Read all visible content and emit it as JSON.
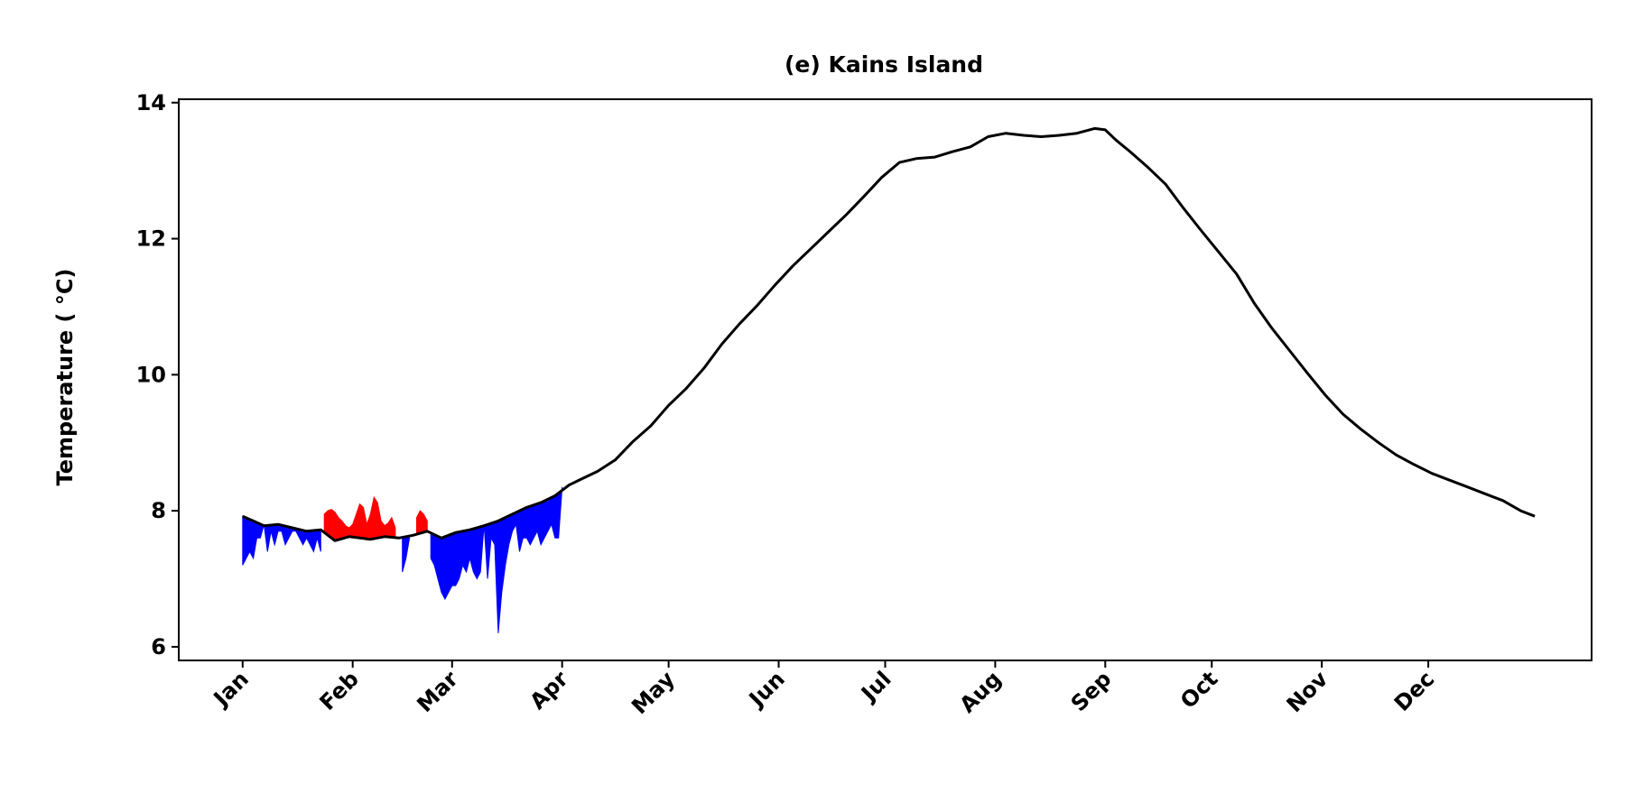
{
  "chart_data": {
    "type": "line",
    "title": "(e) Kains Island",
    "ylabel": "Temperature ( °C)",
    "xlabel": "",
    "x_unit": "day of year",
    "xlim": [
      -18,
      380
    ],
    "ylim": [
      5.8,
      14.05
    ],
    "yticks": [
      6,
      8,
      10,
      12,
      14
    ],
    "xticks": [
      {
        "label": "Jan",
        "day": 0
      },
      {
        "label": "Feb",
        "day": 31
      },
      {
        "label": "Mar",
        "day": 59
      },
      {
        "label": "Apr",
        "day": 90
      },
      {
        "label": "May",
        "day": 120
      },
      {
        "label": "Jun",
        "day": 151
      },
      {
        "label": "Jul",
        "day": 181
      },
      {
        "label": "Aug",
        "day": 212
      },
      {
        "label": "Sep",
        "day": 243
      },
      {
        "label": "Oct",
        "day": 273
      },
      {
        "label": "Nov",
        "day": 304
      },
      {
        "label": "Dec",
        "day": 334
      }
    ],
    "grid": false,
    "colors": {
      "climatology": "#000000",
      "warm_anomaly": "#ff0000",
      "cold_anomaly": "#0000ff"
    },
    "series": [
      {
        "role": "climatology",
        "x": [
          0,
          3,
          6,
          10,
          14,
          18,
          22,
          26,
          30,
          33,
          36,
          40,
          44,
          48,
          52,
          56,
          60,
          64,
          68,
          72,
          76,
          80,
          84,
          88,
          92,
          96,
          100,
          105,
          110,
          115,
          120,
          125,
          130,
          135,
          140,
          145,
          150,
          155,
          160,
          165,
          170,
          175,
          180,
          185,
          190,
          195,
          200,
          205,
          210,
          215,
          220,
          225,
          230,
          235,
          240,
          243,
          246,
          250,
          255,
          260,
          265,
          270,
          275,
          280,
          285,
          290,
          295,
          300,
          305,
          310,
          315,
          320,
          325,
          330,
          335,
          340,
          345,
          350,
          355,
          360,
          364
        ],
        "y": [
          7.92,
          7.85,
          7.78,
          7.8,
          7.75,
          7.7,
          7.72,
          7.56,
          7.62,
          7.6,
          7.58,
          7.62,
          7.6,
          7.64,
          7.7,
          7.6,
          7.68,
          7.72,
          7.78,
          7.85,
          7.95,
          8.05,
          8.12,
          8.22,
          8.38,
          8.48,
          8.58,
          8.75,
          9.02,
          9.25,
          9.55,
          9.8,
          10.1,
          10.45,
          10.75,
          11.02,
          11.32,
          11.6,
          11.85,
          12.1,
          12.35,
          12.62,
          12.9,
          13.12,
          13.18,
          13.2,
          13.28,
          13.35,
          13.5,
          13.55,
          13.52,
          13.5,
          13.52,
          13.55,
          13.62,
          13.6,
          13.45,
          13.28,
          13.05,
          12.8,
          12.45,
          12.12,
          11.8,
          11.48,
          11.05,
          10.68,
          10.35,
          10.02,
          9.7,
          9.42,
          9.2,
          9.0,
          8.82,
          8.68,
          8.55,
          8.45,
          8.35,
          8.25,
          8.15,
          8.0,
          7.92
        ]
      },
      {
        "role": "warm_anomaly",
        "x": [
          23,
          24,
          25,
          26,
          27,
          28,
          29,
          30,
          31,
          32,
          33,
          34,
          35,
          36,
          37,
          38,
          39,
          40,
          41,
          42,
          43,
          49,
          50,
          51,
          52
        ],
        "y": [
          7.95,
          8.0,
          8.02,
          7.98,
          7.9,
          7.85,
          7.78,
          7.75,
          7.8,
          7.95,
          8.1,
          8.05,
          7.8,
          7.95,
          8.2,
          8.12,
          7.85,
          7.78,
          7.82,
          7.9,
          7.75,
          7.9,
          8.0,
          7.95,
          7.85
        ]
      },
      {
        "role": "cold_anomaly",
        "x": [
          0,
          1,
          2,
          3,
          4,
          5,
          6,
          7,
          8,
          9,
          10,
          11,
          12,
          13,
          14,
          15,
          16,
          17,
          18,
          19,
          20,
          21,
          22,
          45,
          46,
          47,
          53,
          54,
          55,
          56,
          57,
          58,
          59,
          60,
          61,
          62,
          63,
          64,
          65,
          66,
          67,
          68,
          69,
          70,
          71,
          72,
          73,
          74,
          75,
          76,
          77,
          78,
          79,
          80,
          81,
          82,
          83,
          84,
          85,
          86,
          87,
          88,
          89,
          90
        ],
        "y": [
          7.2,
          7.3,
          7.4,
          7.3,
          7.6,
          7.6,
          7.8,
          7.4,
          7.7,
          7.5,
          7.7,
          7.7,
          7.5,
          7.6,
          7.7,
          7.7,
          7.6,
          7.5,
          7.6,
          7.5,
          7.4,
          7.6,
          7.4,
          7.1,
          7.3,
          7.6,
          7.3,
          7.2,
          7.0,
          6.8,
          6.7,
          6.8,
          6.9,
          6.9,
          7.0,
          7.2,
          7.1,
          7.3,
          7.1,
          7.0,
          7.1,
          7.8,
          7.0,
          7.6,
          7.5,
          6.2,
          6.8,
          7.2,
          7.5,
          7.7,
          7.8,
          7.4,
          7.6,
          7.6,
          7.5,
          7.6,
          7.7,
          7.5,
          7.6,
          7.7,
          7.8,
          7.6,
          7.6,
          8.35
        ]
      }
    ]
  }
}
